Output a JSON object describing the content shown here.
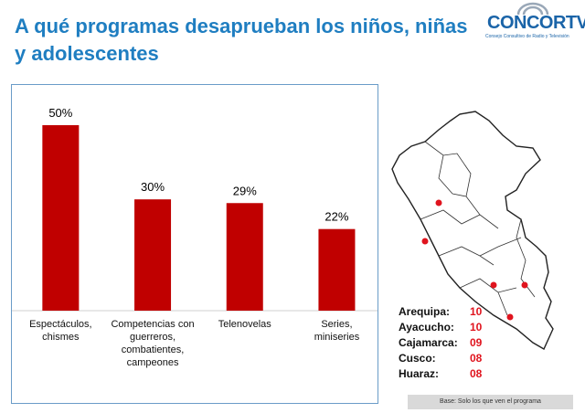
{
  "title": "A qué programas desaprueban los niños, niñas y adolescentes",
  "logo": {
    "name": "CONCORTV",
    "subtitle": "Consejo Consultivo de Radio y Televisión"
  },
  "chart_data": {
    "type": "bar",
    "categories": [
      "Espectáculos, chismes",
      "Competencias con guerreros, combatientes, campeones",
      "Telenovelas",
      "Series, miniseries"
    ],
    "values": [
      50,
      30,
      29,
      22
    ],
    "data_labels": [
      "50%",
      "30%",
      "29%",
      "22%"
    ],
    "ylim": [
      0,
      55
    ],
    "grid": false,
    "bar_color": "#c00000"
  },
  "cities": [
    {
      "name": "Arequipa:",
      "value": "10"
    },
    {
      "name": "Ayacucho:",
      "value": "10"
    },
    {
      "name": "Cajamarca:",
      "value": "09"
    },
    {
      "name": "Cusco:",
      "value": "08"
    },
    {
      "name": "Huaraz:",
      "value": "08"
    }
  ],
  "base_note": "Base: Solo los que ven el programa"
}
